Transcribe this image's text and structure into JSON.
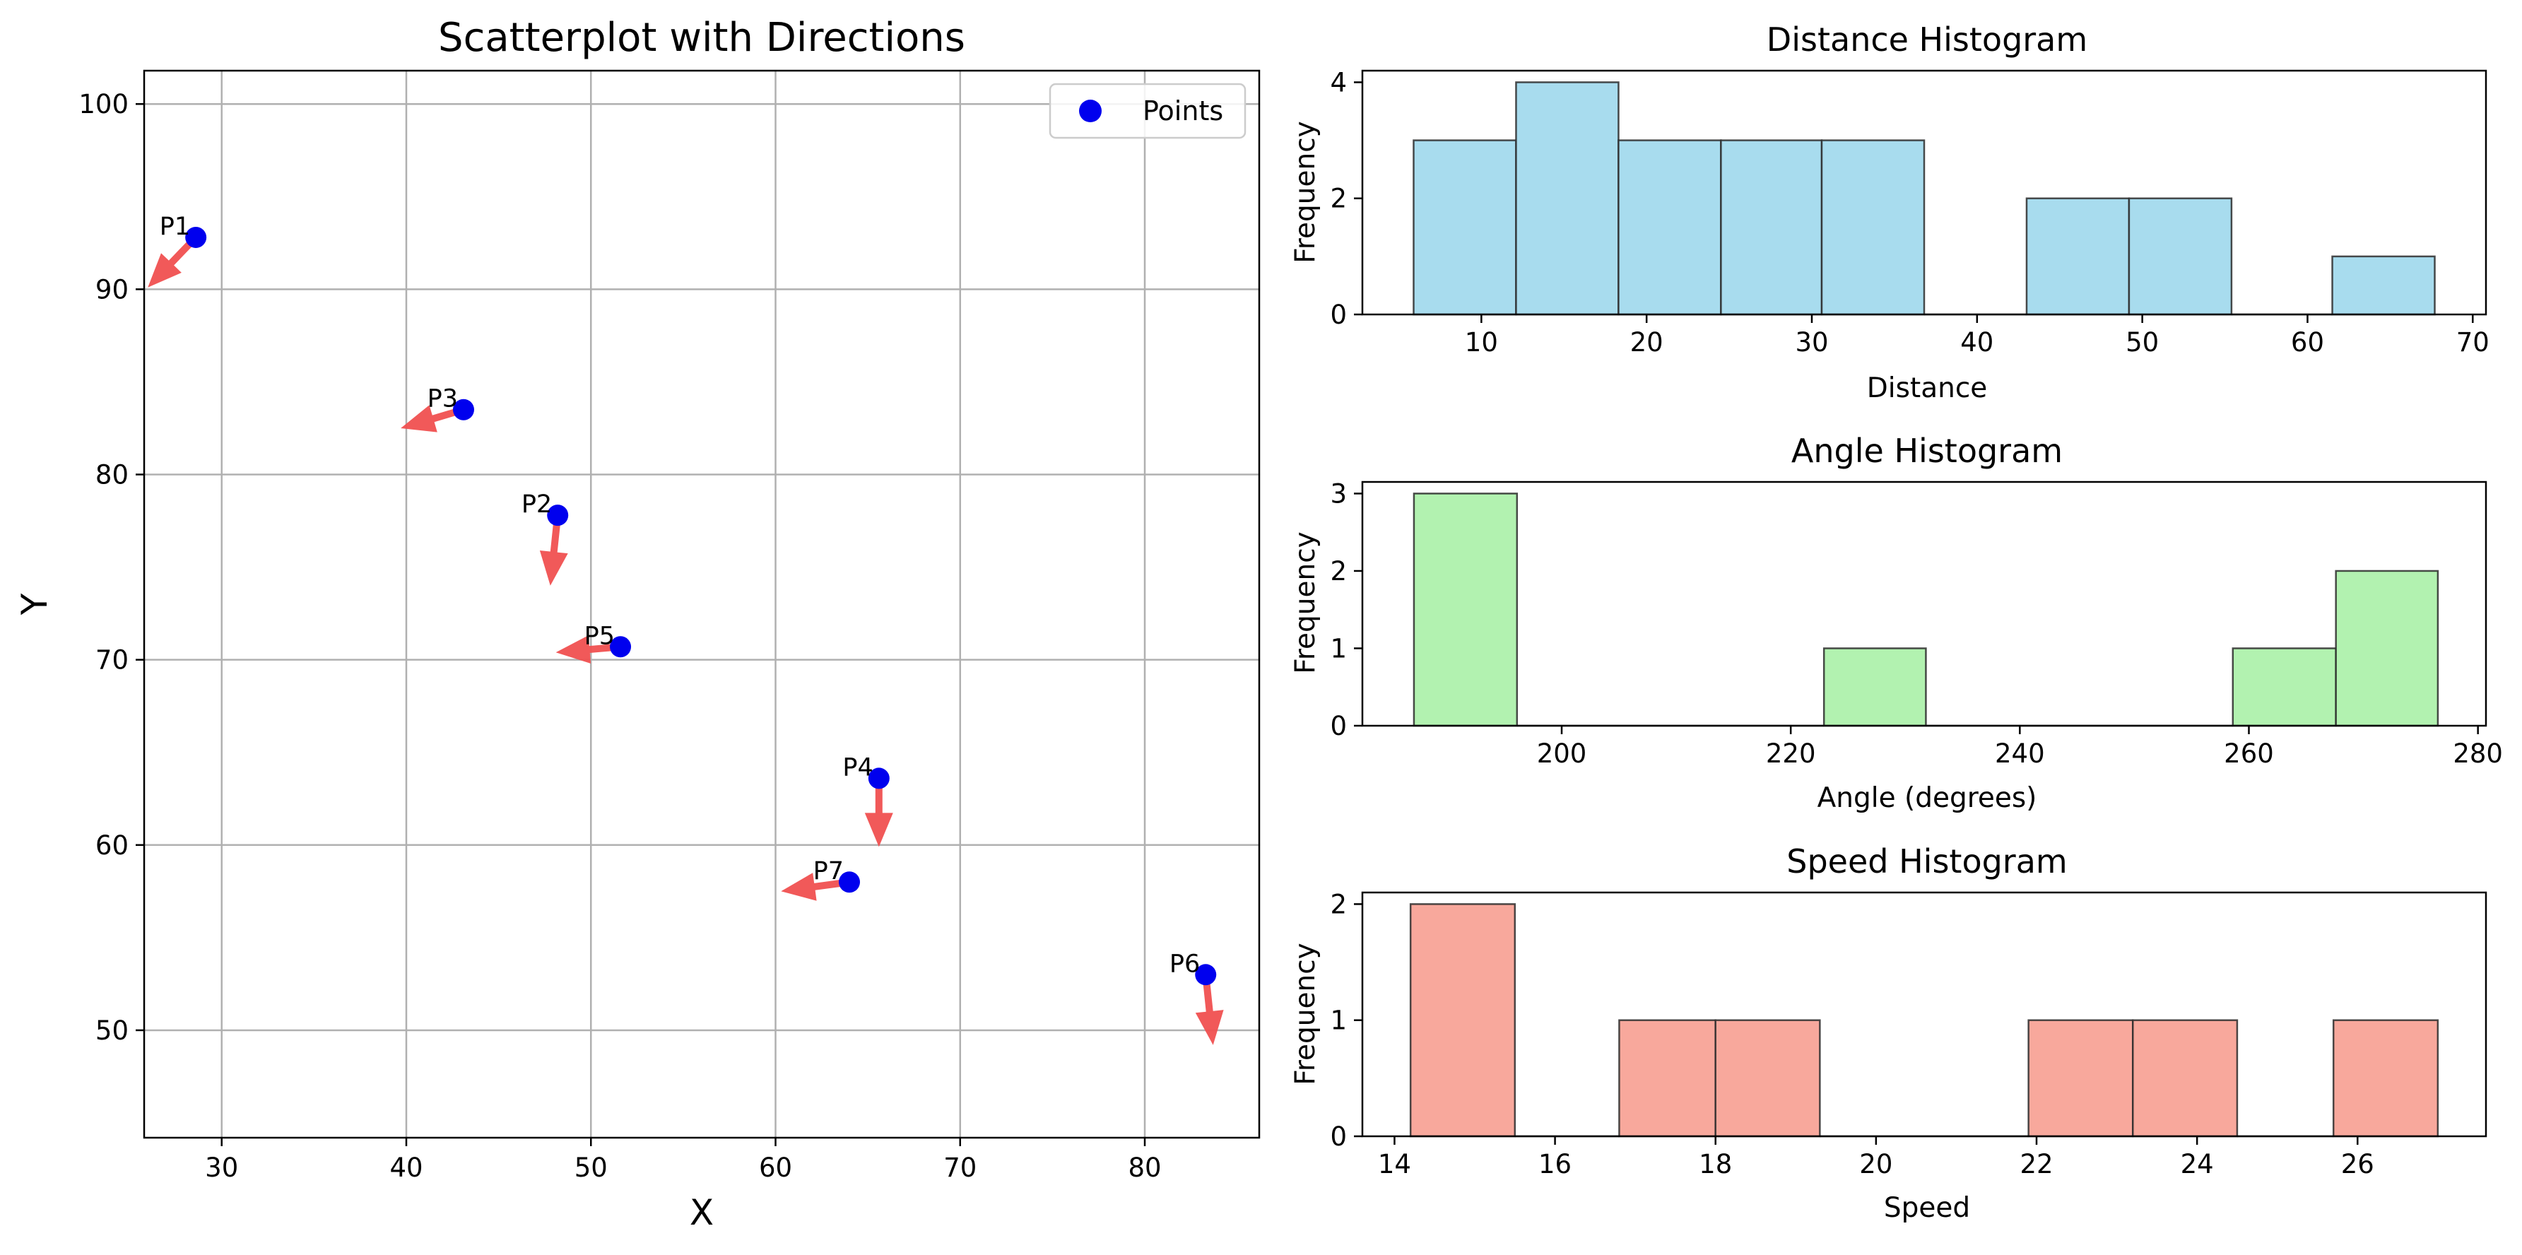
{
  "chart_data": [
    {
      "type": "scatter",
      "title": "Scatterplot with Directions",
      "xlabel": "X",
      "ylabel": "Y",
      "xlim": [
        25.8,
        86.2
      ],
      "ylim": [
        44.2,
        101.8
      ],
      "xticks": [
        30,
        40,
        50,
        60,
        70,
        80
      ],
      "yticks": [
        50,
        60,
        70,
        80,
        90,
        100
      ],
      "grid": true,
      "legend": {
        "position": "top-right",
        "entries": [
          {
            "label": "Points",
            "color": "#0000ee"
          }
        ]
      },
      "colors": {
        "points": "#0000ee",
        "arrows": "#f05050"
      },
      "points": [
        {
          "label": "P1",
          "x": 28.6,
          "y": 92.8,
          "dx": -2.6,
          "dy": -2.7
        },
        {
          "label": "P2",
          "x": 48.2,
          "y": 77.8,
          "dx": -0.4,
          "dy": -3.8
        },
        {
          "label": "P3",
          "x": 43.1,
          "y": 83.5,
          "dx": -3.4,
          "dy": -1.0
        },
        {
          "label": "P4",
          "x": 65.6,
          "y": 63.6,
          "dx": 0.0,
          "dy": -3.7
        },
        {
          "label": "P5",
          "x": 51.6,
          "y": 70.7,
          "dx": -3.5,
          "dy": -0.3
        },
        {
          "label": "P6",
          "x": 83.3,
          "y": 53.0,
          "dx": 0.4,
          "dy": -3.8
        },
        {
          "label": "P7",
          "x": 64.0,
          "y": 58.0,
          "dx": -3.7,
          "dy": -0.5
        }
      ]
    },
    {
      "type": "bar",
      "title": "Distance Histogram",
      "xlabel": "Distance",
      "ylabel": "Frequency",
      "xlim": [
        2.8,
        70.8
      ],
      "ylim": [
        0,
        4.2
      ],
      "xticks": [
        10,
        20,
        30,
        40,
        50,
        60,
        70
      ],
      "yticks": [
        0,
        2,
        4
      ],
      "color": "#a8dcee",
      "bins": [
        {
          "start": 5.9,
          "end": 12.1,
          "value": 3
        },
        {
          "start": 12.1,
          "end": 18.3,
          "value": 4
        },
        {
          "start": 18.3,
          "end": 24.5,
          "value": 3
        },
        {
          "start": 24.5,
          "end": 30.6,
          "value": 3
        },
        {
          "start": 30.6,
          "end": 36.8,
          "value": 3
        },
        {
          "start": 36.8,
          "end": 43.0,
          "value": 0
        },
        {
          "start": 43.0,
          "end": 49.2,
          "value": 2
        },
        {
          "start": 49.2,
          "end": 55.4,
          "value": 2
        },
        {
          "start": 55.4,
          "end": 61.5,
          "value": 0
        },
        {
          "start": 61.5,
          "end": 67.7,
          "value": 1
        }
      ]
    },
    {
      "type": "bar",
      "title": "Angle Histogram",
      "xlabel": "Angle (degrees)",
      "ylabel": "Frequency",
      "xlim": [
        182.6,
        280.7
      ],
      "ylim": [
        0,
        3.15
      ],
      "xticks": [
        200,
        220,
        240,
        260,
        280
      ],
      "yticks": [
        0,
        1,
        2,
        3
      ],
      "color": "#b2f2b0",
      "bins": [
        {
          "start": 187.1,
          "end": 196.1,
          "value": 3
        },
        {
          "start": 196.1,
          "end": 205.0,
          "value": 0
        },
        {
          "start": 205.0,
          "end": 213.9,
          "value": 0
        },
        {
          "start": 213.9,
          "end": 222.9,
          "value": 0
        },
        {
          "start": 222.9,
          "end": 231.8,
          "value": 1
        },
        {
          "start": 231.8,
          "end": 240.8,
          "value": 0
        },
        {
          "start": 240.8,
          "end": 249.7,
          "value": 0
        },
        {
          "start": 249.7,
          "end": 258.6,
          "value": 0
        },
        {
          "start": 258.6,
          "end": 267.6,
          "value": 1
        },
        {
          "start": 267.6,
          "end": 276.5,
          "value": 2
        }
      ]
    },
    {
      "type": "bar",
      "title": "Speed Histogram",
      "xlabel": "Speed",
      "ylabel": "Frequency",
      "xlim": [
        13.6,
        27.6
      ],
      "ylim": [
        0,
        2.1
      ],
      "xticks": [
        14,
        16,
        18,
        20,
        22,
        24,
        26
      ],
      "yticks": [
        0,
        1,
        2
      ],
      "color": "#f8a89c",
      "bins": [
        {
          "start": 14.2,
          "end": 15.5,
          "value": 2
        },
        {
          "start": 15.5,
          "end": 16.8,
          "value": 0
        },
        {
          "start": 16.8,
          "end": 18.0,
          "value": 1
        },
        {
          "start": 18.0,
          "end": 19.3,
          "value": 1
        },
        {
          "start": 19.3,
          "end": 20.6,
          "value": 0
        },
        {
          "start": 20.6,
          "end": 21.9,
          "value": 0
        },
        {
          "start": 21.9,
          "end": 23.2,
          "value": 1
        },
        {
          "start": 23.2,
          "end": 24.5,
          "value": 1
        },
        {
          "start": 24.5,
          "end": 25.7,
          "value": 0
        },
        {
          "start": 25.7,
          "end": 27.0,
          "value": 1
        }
      ]
    }
  ]
}
